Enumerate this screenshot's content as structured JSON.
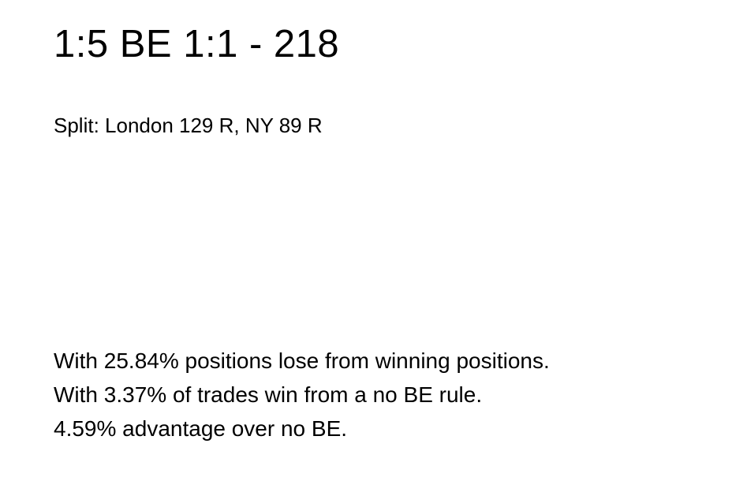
{
  "slide": {
    "title": "1:5 BE 1:1 - 218",
    "subtitle": "Split: London 129 R, NY 89 R",
    "body_lines": [
      "With 25.84% positions lose from winning positions.",
      "With 3.37% of trades win from a no BE rule.",
      "4.59% advantage over no BE."
    ]
  }
}
